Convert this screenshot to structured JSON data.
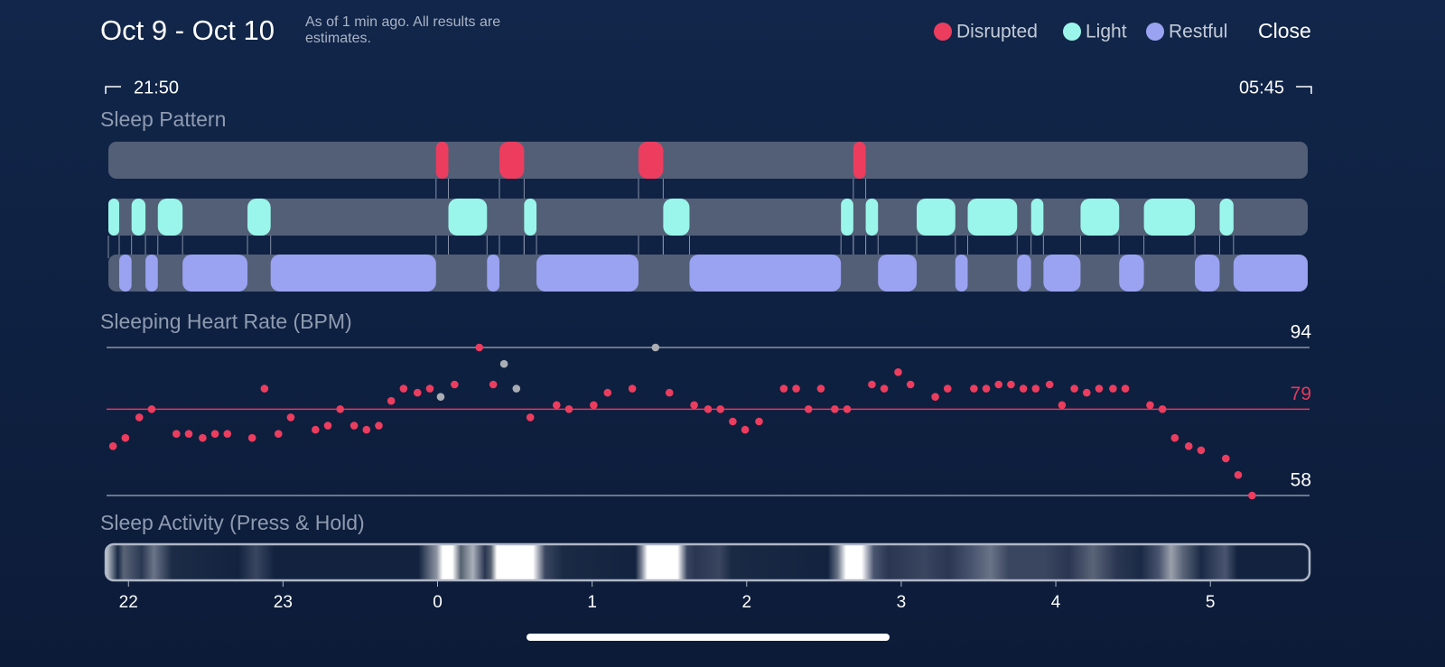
{
  "header": {
    "title": "Oct 9 - Oct 10",
    "subtitle": "As of 1 min ago. All results are estimates.",
    "close": "Close"
  },
  "range": {
    "start": "21:50",
    "end": "05:45"
  },
  "legend": [
    {
      "name": "Disrupted",
      "color": "#ec3d5f",
      "segments": [
        [
          -0.01,
          0.07
        ],
        [
          0.4,
          0.56
        ],
        [
          1.3,
          1.46
        ],
        [
          2.69,
          2.77
        ]
      ]
    },
    {
      "name": "Light",
      "color": "#9af6ea",
      "segments": [
        [
          -2.13,
          -2.06
        ],
        [
          -1.98,
          -1.89
        ],
        [
          -1.81,
          -1.65
        ],
        [
          -1.23,
          -1.08
        ],
        [
          0.07,
          0.32
        ],
        [
          0.56,
          0.64
        ],
        [
          1.46,
          1.63
        ],
        [
          2.61,
          2.69
        ],
        [
          2.77,
          2.85
        ],
        [
          3.1,
          3.35
        ],
        [
          3.43,
          3.75
        ],
        [
          3.84,
          3.92
        ],
        [
          4.16,
          4.41
        ],
        [
          4.57,
          4.9
        ],
        [
          5.06,
          5.15
        ]
      ]
    },
    {
      "name": "Restful",
      "color": "#9aa2f2",
      "segments": [
        [
          -2.06,
          -1.98
        ],
        [
          -1.89,
          -1.81
        ],
        [
          -1.65,
          -1.23
        ],
        [
          -1.08,
          -0.01
        ],
        [
          0.32,
          0.4
        ],
        [
          0.64,
          1.3
        ],
        [
          1.63,
          2.61
        ],
        [
          2.85,
          3.1
        ],
        [
          3.35,
          3.43
        ],
        [
          3.75,
          3.84
        ],
        [
          3.92,
          4.16
        ],
        [
          4.41,
          4.57
        ],
        [
          4.9,
          5.06
        ],
        [
          5.15,
          5.63
        ]
      ]
    }
  ],
  "sleep_pattern": {
    "title": "Sleep Pattern"
  },
  "heart_rate": {
    "type": "scatter",
    "title": "Sleeping Heart Rate (BPM)",
    "ylim": [
      58,
      94
    ],
    "yticks": [
      94,
      79,
      58
    ],
    "series": [
      {
        "color": "#ec3d5f",
        "x": [
          -2.1,
          -2.02,
          -1.93,
          -1.85,
          -1.69,
          -1.61,
          -1.52,
          -1.44,
          -1.36,
          -1.2,
          -1.12,
          -1.03,
          -0.95,
          -0.79,
          -0.71,
          -0.63,
          -0.54,
          -0.46,
          -0.38,
          -0.3,
          -0.22,
          -0.13,
          -0.05,
          0.11,
          0.27,
          0.36,
          0.6,
          0.77,
          0.85,
          1.01,
          1.1,
          1.26,
          1.5,
          1.66,
          1.75,
          1.83,
          1.91,
          1.99,
          2.08,
          2.24,
          2.32,
          2.4,
          2.48,
          2.57,
          2.65,
          2.81,
          2.89,
          2.98,
          3.06,
          3.22,
          3.3,
          3.47,
          3.55,
          3.63,
          3.71,
          3.79,
          3.87,
          3.96,
          4.04,
          4.12,
          4.2,
          4.28,
          4.37,
          4.45,
          4.61,
          4.69,
          4.77,
          4.86,
          4.94,
          5.1,
          5.18,
          5.27
        ],
        "values": [
          70,
          72,
          77,
          79,
          73,
          73,
          72,
          73,
          73,
          72,
          84,
          73,
          77,
          74,
          75,
          79,
          75,
          74,
          75,
          81,
          84,
          83,
          84,
          85,
          94,
          85,
          77,
          80,
          79,
          80,
          83,
          84,
          83,
          80,
          79,
          79,
          76,
          74,
          76,
          84,
          84,
          79,
          84,
          79,
          79,
          85,
          84,
          88,
          85,
          82,
          84,
          84,
          84,
          85,
          85,
          84,
          84,
          85,
          80,
          84,
          83,
          84,
          84,
          84,
          80,
          79,
          72,
          70,
          69,
          67,
          63,
          58
        ]
      },
      {
        "color": "#a9adb4",
        "x": [
          0.02,
          0.43,
          0.51,
          1.41
        ],
        "values": [
          82,
          90,
          84,
          94
        ]
      }
    ]
  },
  "activity": {
    "title": "Sleep Activity (Press & Hold)"
  },
  "xaxis": {
    "xlim": [
      -2.13,
      5.63
    ],
    "xticks": [
      {
        "value": -2,
        "label": "22"
      },
      {
        "value": -1,
        "label": "23"
      },
      0,
      1,
      2,
      3,
      4,
      5
    ]
  }
}
